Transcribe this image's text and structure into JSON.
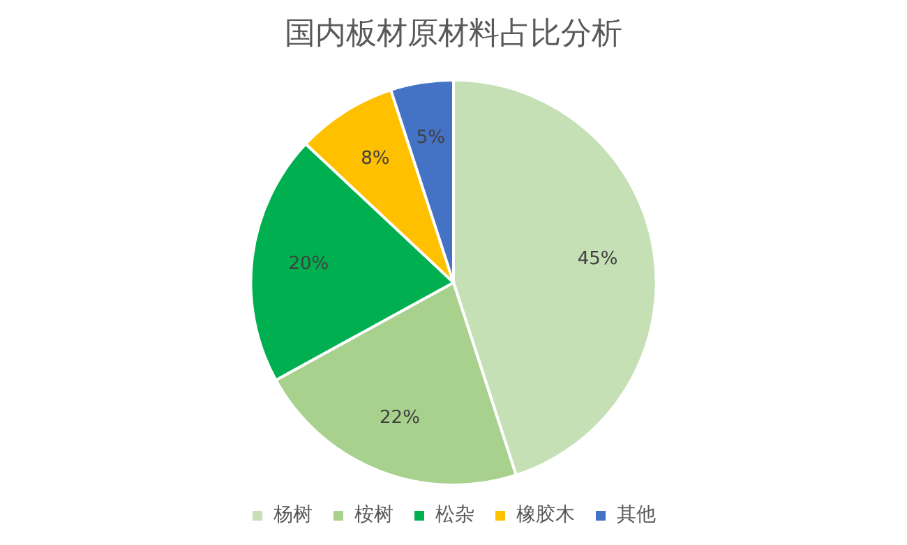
{
  "chart_data": {
    "type": "pie",
    "title": "国内板材原材料占比分析",
    "categories": [
      "杨树",
      "桉树",
      "松杂",
      "橡胶木",
      "其他"
    ],
    "values": [
      45,
      22,
      20,
      8,
      5
    ],
    "colors": [
      "#c5e0b4",
      "#a9d18e",
      "#00b050",
      "#ffc000",
      "#4472c4"
    ],
    "value_labels": [
      "45%",
      "22%",
      "20%",
      "8%",
      "5%"
    ],
    "legend": "bottom"
  }
}
